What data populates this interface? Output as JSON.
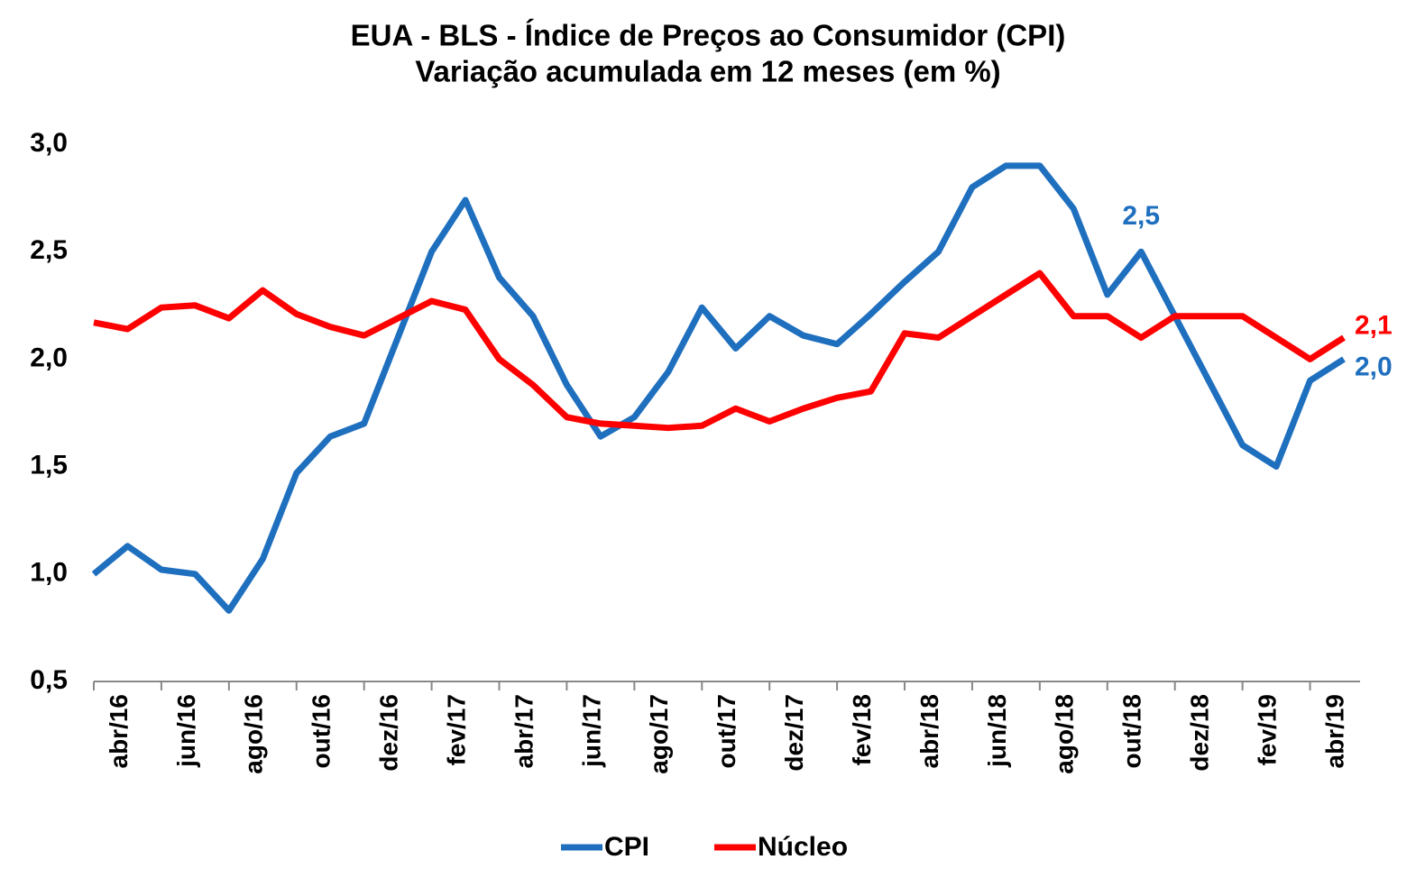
{
  "chart_data": {
    "type": "line",
    "title": "EUA - BLS - Índice de Preços ao Consumidor (CPI)",
    "subtitle": "Variação acumulada em 12 meses (em %)",
    "categories": [
      null,
      "abr/16",
      null,
      "jun/16",
      null,
      "ago/16",
      null,
      "out/16",
      null,
      "dez/16",
      null,
      "fev/17",
      null,
      "abr/17",
      null,
      "jun/17",
      null,
      "ago/17",
      null,
      "out/17",
      null,
      "dez/17",
      null,
      "fev/18",
      null,
      "abr/18",
      null,
      "jun/18",
      null,
      "ago/18",
      null,
      "out/18",
      null,
      "dez/18",
      null,
      "fev/19",
      null,
      "abr/19"
    ],
    "series": [
      {
        "name": "CPI",
        "color": "#1f6fbf",
        "values": [
          1.0,
          1.13,
          1.02,
          1.0,
          0.83,
          1.07,
          1.47,
          1.64,
          1.7,
          2.1,
          2.5,
          2.74,
          2.38,
          2.2,
          1.88,
          1.64,
          1.73,
          1.94,
          2.24,
          2.05,
          2.2,
          2.11,
          2.07,
          2.21,
          2.36,
          2.5,
          2.8,
          2.9,
          2.9,
          2.7,
          2.3,
          2.5,
          2.2,
          1.9,
          1.6,
          1.5,
          1.9,
          2.0
        ],
        "value_labels": [
          null,
          null,
          null,
          null,
          null,
          null,
          null,
          null,
          null,
          null,
          null,
          null,
          null,
          null,
          null,
          null,
          null,
          null,
          null,
          null,
          null,
          null,
          null,
          null,
          null,
          null,
          null,
          null,
          null,
          null,
          null,
          "2,5",
          null,
          null,
          null,
          null,
          null,
          "2,0"
        ]
      },
      {
        "name": "Núcleo",
        "color": "#ff0000",
        "values": [
          2.17,
          2.14,
          2.24,
          2.25,
          2.19,
          2.32,
          2.21,
          2.15,
          2.11,
          2.19,
          2.27,
          2.23,
          2.0,
          1.88,
          1.73,
          1.7,
          1.69,
          1.68,
          1.69,
          1.77,
          1.71,
          1.77,
          1.82,
          1.85,
          2.12,
          2.1,
          2.2,
          2.3,
          2.4,
          2.2,
          2.2,
          2.1,
          2.2,
          2.2,
          2.2,
          2.1,
          2.0,
          2.1
        ],
        "value_labels": [
          null,
          null,
          null,
          null,
          null,
          null,
          null,
          null,
          null,
          null,
          null,
          null,
          null,
          null,
          null,
          null,
          null,
          null,
          null,
          null,
          null,
          null,
          null,
          null,
          null,
          null,
          null,
          null,
          null,
          null,
          null,
          null,
          null,
          null,
          null,
          null,
          null,
          "2,1"
        ]
      }
    ],
    "ylim": [
      0.5,
      3.0
    ],
    "yticks": [
      {
        "value": 0.5,
        "label": "0,5"
      },
      {
        "value": 1.0,
        "label": "1,0"
      },
      {
        "value": 1.5,
        "label": "1,5"
      },
      {
        "value": 2.0,
        "label": "2,0"
      },
      {
        "value": 2.5,
        "label": "2,5"
      },
      {
        "value": 3.0,
        "label": "3,0"
      }
    ],
    "grid": false,
    "legend": "bottom"
  }
}
